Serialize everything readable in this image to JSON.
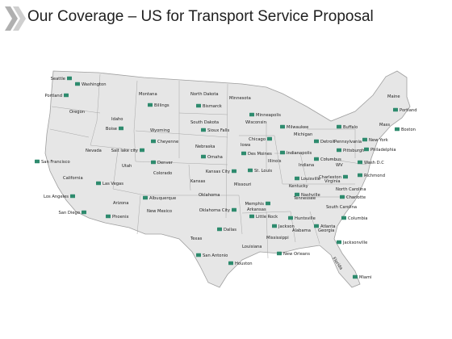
{
  "title": "Our Coverage – US for Transport Service Proposal",
  "colors": {
    "land": "#e6e6e6",
    "border": "#9e9e9e",
    "marker": "#2e8b6e",
    "text": "#222222",
    "chevron": "#b0b0b0"
  },
  "states": [
    "Montana",
    "North Dakota",
    "Minnesota",
    "Maine",
    "Oregon",
    "Idaho",
    "South Dakota",
    "Wisconsin",
    "Michigan",
    "Mass",
    "Wyoming",
    "Pennsylvania",
    "Nevada",
    "Nebraska",
    "Iowa",
    "Illinois",
    "Utah",
    "Indiana",
    "California",
    "Colorado",
    "Kansas",
    "Missouri",
    "WV",
    "Virginia",
    "Kentucky",
    "Arizona",
    "Oklahoma",
    "Tennessee",
    "North Carolina",
    "New Mexico",
    "Arkansas",
    "South Carolina",
    "Alabama",
    "Georgia",
    "Texas",
    "Mississippi",
    "Louisiana",
    "Florida"
  ],
  "cities": [
    {
      "name": "Seattle",
      "side": "left"
    },
    {
      "name": "Washington",
      "side": "right"
    },
    {
      "name": "Portland",
      "side": "left"
    },
    {
      "name": "Billings",
      "side": "right"
    },
    {
      "name": "Bismarck",
      "side": "right"
    },
    {
      "name": "Portland",
      "side": "right"
    },
    {
      "name": "Minneapolis",
      "side": "right"
    },
    {
      "name": "Boise",
      "side": "left"
    },
    {
      "name": "Sioux Falls",
      "side": "right"
    },
    {
      "name": "Milwaukee",
      "side": "right"
    },
    {
      "name": "Buffalo",
      "side": "right"
    },
    {
      "name": "Boston",
      "side": "right"
    },
    {
      "name": "Cheyenne",
      "side": "right"
    },
    {
      "name": "Detroit",
      "side": "right"
    },
    {
      "name": "New York",
      "side": "right"
    },
    {
      "name": "Chicago",
      "side": "left"
    },
    {
      "name": "Salt lake city",
      "side": "left"
    },
    {
      "name": "Omaha",
      "side": "right"
    },
    {
      "name": "Des Moines",
      "side": "right"
    },
    {
      "name": "Indianapolis",
      "side": "right"
    },
    {
      "name": "Pittsburgh",
      "side": "right"
    },
    {
      "name": "Philadelphia",
      "side": "right"
    },
    {
      "name": "San Francisco",
      "side": "right"
    },
    {
      "name": "Denver",
      "side": "right"
    },
    {
      "name": "Columbus",
      "side": "right"
    },
    {
      "name": "Wash D.C",
      "side": "right"
    },
    {
      "name": "Kansas City",
      "side": "left"
    },
    {
      "name": "St. Louis",
      "side": "right"
    },
    {
      "name": "Charleston",
      "side": "left"
    },
    {
      "name": "Richmond",
      "side": "right"
    },
    {
      "name": "Louisville",
      "side": "right"
    },
    {
      "name": "Las Vegas",
      "side": "right"
    },
    {
      "name": "Nashville",
      "side": "right"
    },
    {
      "name": "Charlotte",
      "side": "right"
    },
    {
      "name": "Los Angeles",
      "side": "left"
    },
    {
      "name": "Albuquerque",
      "side": "right"
    },
    {
      "name": "Memphis",
      "side": "left"
    },
    {
      "name": "Oklahoma City",
      "side": "left"
    },
    {
      "name": "San Diego",
      "side": "left"
    },
    {
      "name": "Phoenix",
      "side": "right"
    },
    {
      "name": "Little Rock",
      "side": "right"
    },
    {
      "name": "Huntsville",
      "side": "right"
    },
    {
      "name": "Columbia",
      "side": "right"
    },
    {
      "name": "Jackson",
      "side": "right"
    },
    {
      "name": "Atlanta",
      "side": "right"
    },
    {
      "name": "Dallas",
      "side": "right"
    },
    {
      "name": "Jacksonville",
      "side": "right"
    },
    {
      "name": "San Antonio",
      "side": "right"
    },
    {
      "name": "New Orleans",
      "side": "right"
    },
    {
      "name": "Houston",
      "side": "right"
    },
    {
      "name": "Miami",
      "side": "right"
    }
  ]
}
